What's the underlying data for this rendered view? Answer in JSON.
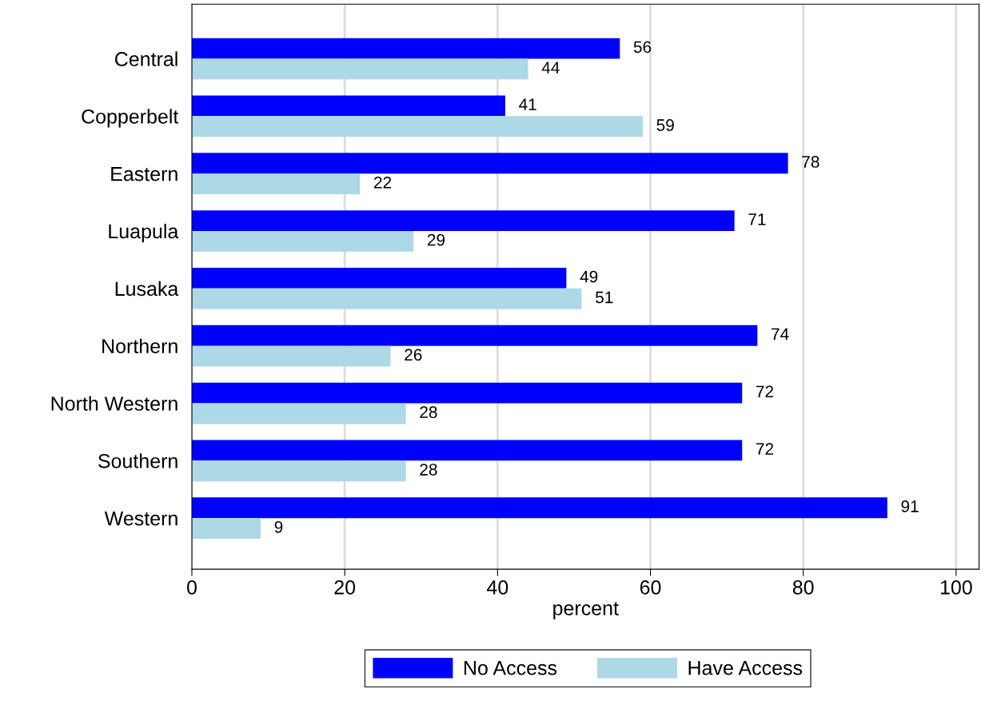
{
  "chart_data": {
    "type": "bar",
    "orientation": "horizontal",
    "xlabel": "percent",
    "categories": [
      "Central",
      "Copperbelt",
      "Eastern",
      "Luapula",
      "Lusaka",
      "Northern",
      "North Western",
      "Southern",
      "Western"
    ],
    "series": [
      {
        "name": "No Access",
        "color": "#0000ff",
        "values": [
          56,
          41,
          78,
          71,
          49,
          74,
          72,
          72,
          91
        ]
      },
      {
        "name": "Have Access",
        "color": "#add8e6",
        "values": [
          44,
          59,
          22,
          29,
          51,
          26,
          28,
          28,
          9
        ]
      }
    ],
    "xlim": [
      0,
      103
    ],
    "xticks": [
      0,
      20,
      40,
      60,
      80,
      100
    ],
    "grid": "x",
    "legend": "bottom",
    "data_labels": true
  }
}
